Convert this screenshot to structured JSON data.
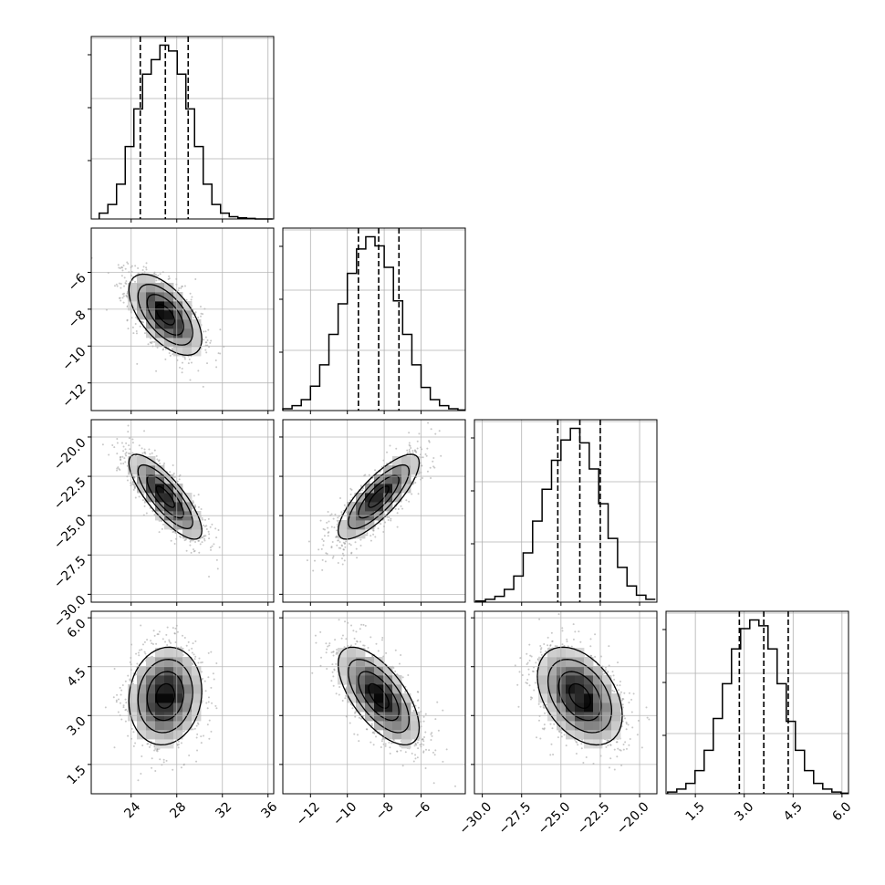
{
  "chart_data": {
    "type": "corner",
    "grid": true,
    "n_params": 4,
    "params": [
      {
        "index": 0,
        "range": [
          20.5,
          36.5
        ],
        "ticks": [
          24,
          28,
          32,
          36
        ],
        "tick_labels": [
          "24",
          "28",
          "32",
          "36"
        ],
        "quantiles": [
          24.8,
          27.0,
          29.0
        ],
        "mean": 27.0,
        "sd": 1.6
      },
      {
        "index": 1,
        "range": [
          -13.5,
          -3.6
        ],
        "ticks": [
          -12,
          -10,
          -8,
          -6
        ],
        "tick_labels": [
          "−12",
          "−10",
          "−8",
          "−6"
        ],
        "quantiles": [
          -9.4,
          -8.3,
          -7.2
        ],
        "mean": -8.3,
        "sd": 1.1
      },
      {
        "index": 2,
        "range": [
          -30.5,
          -18.9
        ],
        "ticks": [
          -30.0,
          -27.5,
          -25.0,
          -22.5,
          -20.0
        ],
        "tick_labels": [
          "−30.0",
          "−27.5",
          "−25.0",
          "−22.5",
          "−20.0"
        ],
        "quantiles": [
          -25.2,
          -23.8,
          -22.5
        ],
        "mean": -23.8,
        "sd": 1.35
      },
      {
        "index": 3,
        "range": [
          0.6,
          6.2
        ],
        "ticks": [
          1.5,
          3.0,
          4.5,
          6.0
        ],
        "tick_labels": [
          "1.5",
          "3.0",
          "4.5",
          "6.0"
        ],
        "quantiles": [
          2.85,
          3.6,
          4.35
        ],
        "mean": 3.6,
        "sd": 0.75
      }
    ],
    "histograms": [
      {
        "param": 0,
        "bin_edges": [
          21.2,
          21.96,
          22.72,
          23.48,
          24.24,
          25.0,
          25.76,
          26.52,
          27.28,
          28.04,
          28.8,
          29.56,
          30.32,
          31.08,
          31.84,
          32.6,
          33.36,
          34.12,
          34.88,
          35.64,
          36.4
        ],
        "counts": [
          10,
          25,
          60,
          125,
          190,
          250,
          275,
          300,
          290,
          250,
          190,
          125,
          60,
          25,
          10,
          4,
          2,
          1,
          0,
          0
        ]
      },
      {
        "param": 1,
        "bin_edges": [
          -13.5,
          -13.0,
          -12.5,
          -12.0,
          -11.5,
          -11.0,
          -10.5,
          -10.0,
          -9.5,
          -9.0,
          -8.5,
          -8.0,
          -7.5,
          -7.0,
          -6.5,
          -6.0,
          -5.5,
          -5.0,
          -4.5,
          -4.0,
          -3.6
        ],
        "counts": [
          3,
          8,
          18,
          40,
          75,
          125,
          175,
          225,
          265,
          285,
          270,
          235,
          180,
          125,
          75,
          38,
          18,
          8,
          3,
          1
        ]
      },
      {
        "param": 2,
        "bin_edges": [
          -30.4,
          -29.8,
          -29.2,
          -28.6,
          -28.0,
          -27.4,
          -26.8,
          -26.2,
          -25.6,
          -25.0,
          -24.4,
          -23.8,
          -23.2,
          -22.6,
          -22.0,
          -21.4,
          -20.8,
          -20.2,
          -19.6,
          -19.0
        ],
        "counts": [
          2,
          5,
          10,
          22,
          45,
          85,
          140,
          195,
          245,
          280,
          300,
          275,
          230,
          170,
          110,
          60,
          28,
          12,
          5
        ]
      },
      {
        "param": 3,
        "bin_edges": [
          0.65,
          0.93,
          1.21,
          1.49,
          1.77,
          2.05,
          2.33,
          2.61,
          2.89,
          3.17,
          3.45,
          3.73,
          4.01,
          4.29,
          4.57,
          4.85,
          5.13,
          5.41,
          5.69,
          5.97,
          6.2
        ],
        "counts": [
          3,
          8,
          18,
          40,
          75,
          130,
          190,
          250,
          285,
          300,
          290,
          250,
          190,
          125,
          75,
          40,
          18,
          8,
          3,
          1
        ]
      }
    ],
    "pairs": [
      {
        "x_param": 0,
        "y_param": 1,
        "correlation": -0.6
      },
      {
        "x_param": 0,
        "y_param": 2,
        "correlation": -0.8
      },
      {
        "x_param": 1,
        "y_param": 2,
        "correlation": 0.8
      },
      {
        "x_param": 0,
        "y_param": 3,
        "correlation": 0.1
      },
      {
        "x_param": 1,
        "y_param": 3,
        "correlation": -0.65
      },
      {
        "x_param": 2,
        "y_param": 3,
        "correlation": -0.4
      }
    ],
    "contour_levels_sigma": [
      0.5,
      1.0,
      1.5,
      2.0
    ]
  }
}
